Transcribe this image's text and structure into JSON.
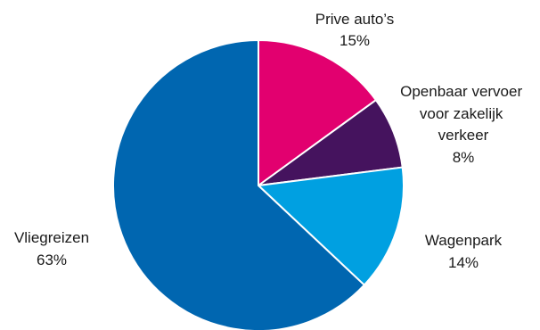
{
  "chart_data": {
    "type": "pie",
    "start": "top",
    "direction": "clockwise",
    "legend": "none",
    "slices": [
      {
        "label": "Prive auto’s",
        "value": 15,
        "display": "15%",
        "color": "#e2006f"
      },
      {
        "label": "Openbaar vervoer voor zakelijk verkeer",
        "value": 8,
        "display": "8%",
        "color": "#45135e"
      },
      {
        "label": "Wagenpark",
        "value": 14,
        "display": "14%",
        "color": "#00a0e1"
      },
      {
        "label": "Vliegreizen",
        "value": 63,
        "display": "63%",
        "color": "#0066b0"
      }
    ]
  }
}
